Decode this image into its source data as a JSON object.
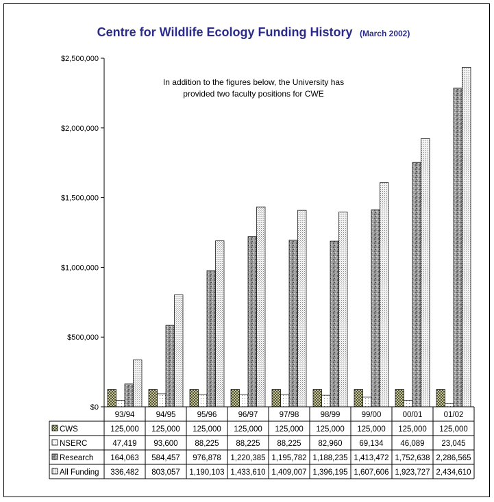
{
  "chart_data": {
    "type": "bar",
    "title": "Centre for Wildlife Ecology Funding History",
    "subtitle": "(March 2002)",
    "annotation": [
      "In addition to the figures below, the University has",
      "provided two faculty positions for CWE"
    ],
    "categories": [
      "93/94",
      "94/95",
      "95/96",
      "96/97",
      "97/98",
      "98/99",
      "99/00",
      "00/01",
      "01/02"
    ],
    "ylim": [
      0,
      2500000
    ],
    "yticks": [
      0,
      500000,
      1000000,
      1500000,
      2000000,
      2500000
    ],
    "ytick_labels": [
      "$0",
      "$500,000",
      "$1,000,000",
      "$1,500,000",
      "$2,000,000",
      "$2,500,000"
    ],
    "xlabel": "",
    "ylabel": "",
    "legend": "data-table-left",
    "series": [
      {
        "name": "CWS",
        "values": [
          125000,
          125000,
          125000,
          125000,
          125000,
          125000,
          125000,
          125000,
          125000
        ],
        "labels": [
          "125,000",
          "125,000",
          "125,000",
          "125,000",
          "125,000",
          "125,000",
          "125,000",
          "125,000",
          "125,000"
        ]
      },
      {
        "name": "NSERC",
        "values": [
          47419,
          93600,
          88225,
          88225,
          88225,
          82960,
          69134,
          46089,
          23045
        ],
        "labels": [
          "47,419",
          "93,600",
          "88,225",
          "88,225",
          "88,225",
          "82,960",
          "69,134",
          "46,089",
          "23,045"
        ]
      },
      {
        "name": "Research",
        "values": [
          164063,
          584457,
          976878,
          1220385,
          1195782,
          1188235,
          1413472,
          1752638,
          2286565
        ],
        "labels": [
          "164,063",
          "584,457",
          "976,878",
          "1,220,385",
          "1,195,782",
          "1,188,235",
          "1,413,472",
          "1,752,638",
          "2,286,565"
        ]
      },
      {
        "name": "All Funding",
        "values": [
          336482,
          803057,
          1190103,
          1433610,
          1409007,
          1396195,
          1607606,
          1923727,
          2434610
        ],
        "labels": [
          "336,482",
          "803,057",
          "1,190,103",
          "1,433,610",
          "1,409,007",
          "1,396,195",
          "1,607,606",
          "1,923,727",
          "2,434,610"
        ]
      }
    ]
  }
}
